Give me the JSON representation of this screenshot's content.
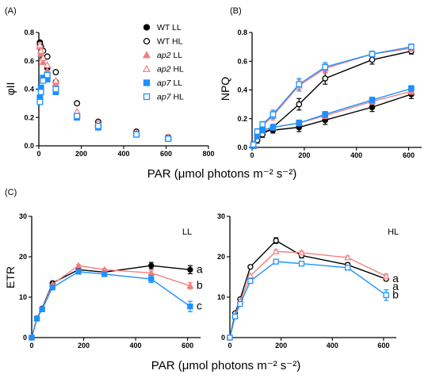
{
  "colors": {
    "wt": "#000000",
    "ap2": "#f08080",
    "ap7": "#1e90ff"
  },
  "panel_a": {
    "label": "(A)",
    "legend": [
      {
        "series": "WT LL",
        "gene": "WT",
        "cond": "LL",
        "italic": false,
        "color": "#000000",
        "marker": "circle",
        "filled": true
      },
      {
        "series": "WT HL",
        "gene": "WT",
        "cond": "HL",
        "italic": false,
        "color": "#000000",
        "marker": "circle",
        "filled": false
      },
      {
        "series": "ap2 LL",
        "gene": "ap2",
        "cond": "LL",
        "italic": true,
        "color": "#f08080",
        "marker": "triangle",
        "filled": true
      },
      {
        "series": "ap2 HL",
        "gene": "ap2",
        "cond": "HL",
        "italic": true,
        "color": "#f08080",
        "marker": "triangle",
        "filled": false
      },
      {
        "series": "ap7 LL",
        "gene": "ap7",
        "cond": "LL",
        "italic": true,
        "color": "#1e90ff",
        "marker": "square",
        "filled": true
      },
      {
        "series": "ap7 HL",
        "gene": "ap7",
        "cond": "HL",
        "italic": true,
        "color": "#1e90ff",
        "marker": "square",
        "filled": false
      }
    ]
  },
  "panel_b": {
    "label": "(B)"
  },
  "panel_c": {
    "label": "(C)",
    "ll_label": "LL",
    "hl_label": "HL"
  },
  "shared": {
    "xlabel_ab": "PAR (μmol photons m⁻² s⁻²)",
    "xlabel_c": "PAR (μmol photons m⁻² s⁻²)"
  },
  "chart_data": [
    {
      "id": "A",
      "type": "scatter",
      "ylabel": "φII",
      "xlabel": "",
      "xlim": [
        0,
        800
      ],
      "ylim": [
        0,
        0.8
      ],
      "xticks": [
        0,
        200,
        400,
        600,
        800
      ],
      "yticks": [
        0.0,
        0.2,
        0.4,
        0.6,
        0.8
      ],
      "x": [
        5,
        10,
        20,
        40,
        80,
        180,
        280,
        460,
        610
      ],
      "series": [
        {
          "name": "WT LL",
          "values": [
            0.73,
            0.69,
            0.62,
            0.55,
            0.45,
            0.22,
            0.15,
            0.09,
            0.06
          ]
        },
        {
          "name": "WT HL",
          "values": [
            0.72,
            0.7,
            0.67,
            0.63,
            0.52,
            0.3,
            0.17,
            0.1,
            0.06
          ]
        },
        {
          "name": "ap2 LL",
          "values": [
            0.7,
            0.65,
            0.59,
            0.53,
            0.44,
            0.22,
            0.15,
            0.09,
            0.06
          ]
        },
        {
          "name": "ap2 HL",
          "values": [
            0.71,
            0.67,
            0.62,
            0.57,
            0.46,
            0.24,
            0.16,
            0.09,
            0.06
          ]
        },
        {
          "name": "ap7 LL",
          "values": [
            0.34,
            0.41,
            0.48,
            0.47,
            0.38,
            0.2,
            0.13,
            0.08,
            0.05
          ]
        },
        {
          "name": "ap7 HL",
          "values": [
            0.31,
            0.38,
            0.46,
            0.5,
            0.4,
            0.21,
            0.14,
            0.08,
            0.05
          ]
        }
      ]
    },
    {
      "id": "B",
      "type": "line",
      "ylabel": "NPQ",
      "xlabel": "",
      "xlim": [
        0,
        650
      ],
      "ylim": [
        0,
        0.8
      ],
      "xticks": [
        0,
        200,
        400,
        600
      ],
      "yticks": [
        0.0,
        0.2,
        0.4,
        0.6,
        0.8
      ],
      "x": [
        5,
        20,
        40,
        80,
        180,
        280,
        460,
        610
      ],
      "series": [
        {
          "name": "WT LL",
          "values": [
            0.01,
            0.07,
            0.11,
            0.12,
            0.14,
            0.19,
            0.28,
            0.37
          ],
          "err": [
            0.01,
            0.02,
            0.02,
            0.02,
            0.03,
            0.03,
            0.03,
            0.03
          ]
        },
        {
          "name": "WT HL",
          "values": [
            0.01,
            0.05,
            0.09,
            0.14,
            0.3,
            0.48,
            0.61,
            0.67
          ],
          "err": [
            0.01,
            0.02,
            0.02,
            0.02,
            0.04,
            0.04,
            0.03,
            0.02
          ]
        },
        {
          "name": "ap2 LL",
          "values": [
            0.01,
            0.08,
            0.12,
            0.14,
            0.17,
            0.22,
            0.32,
            0.39
          ],
          "err": [
            0.01,
            0.02,
            0.02,
            0.02,
            0.02,
            0.02,
            0.02,
            0.02
          ]
        },
        {
          "name": "ap2 HL",
          "values": [
            0.02,
            0.1,
            0.15,
            0.22,
            0.43,
            0.55,
            0.65,
            0.69
          ],
          "err": [
            0.01,
            0.02,
            0.02,
            0.03,
            0.04,
            0.03,
            0.02,
            0.02
          ]
        },
        {
          "name": "ap7 LL",
          "values": [
            0.01,
            0.08,
            0.12,
            0.14,
            0.17,
            0.23,
            0.33,
            0.41
          ],
          "err": [
            0.01,
            0.02,
            0.02,
            0.02,
            0.02,
            0.02,
            0.02,
            0.02
          ]
        },
        {
          "name": "ap7 HL",
          "values": [
            0.02,
            0.11,
            0.16,
            0.23,
            0.44,
            0.56,
            0.65,
            0.7
          ],
          "err": [
            0.01,
            0.02,
            0.02,
            0.03,
            0.04,
            0.03,
            0.02,
            0.02
          ]
        }
      ]
    },
    {
      "id": "C-LL",
      "type": "line",
      "ylabel": "ETR",
      "xlabel": "",
      "xlim": [
        0,
        650
      ],
      "ylim": [
        0,
        30
      ],
      "xticks": [
        0,
        200,
        400,
        600
      ],
      "yticks": [
        0,
        10,
        20,
        30
      ],
      "x": [
        0,
        20,
        40,
        80,
        180,
        280,
        460,
        610
      ],
      "series": [
        {
          "name": "WT LL",
          "values": [
            0,
            4.8,
            7.2,
            13.5,
            16.8,
            16.2,
            17.8,
            16.8
          ],
          "err": [
            0,
            0,
            0,
            0,
            0.3,
            0.4,
            0.8,
            1.0
          ]
        },
        {
          "name": "ap2 LL",
          "values": [
            0,
            4.8,
            7.0,
            13.2,
            17.8,
            16.8,
            16.0,
            12.8
          ],
          "err": [
            0,
            0,
            0,
            0,
            0.3,
            0.3,
            0.5,
            0.8
          ]
        },
        {
          "name": "ap7 LL",
          "values": [
            0,
            4.7,
            7.0,
            12.4,
            16.3,
            15.7,
            14.5,
            7.7
          ],
          "err": [
            0,
            0,
            0,
            0,
            0.4,
            0.6,
            0.9,
            1.3
          ]
        }
      ],
      "annotations": [
        "a",
        "b",
        "c"
      ]
    },
    {
      "id": "C-HL",
      "type": "line",
      "ylabel": "",
      "xlabel": "",
      "xlim": [
        0,
        650
      ],
      "ylim": [
        0,
        30
      ],
      "xticks": [
        0,
        200,
        400,
        600
      ],
      "yticks": [
        0,
        10,
        20,
        30
      ],
      "x": [
        0,
        20,
        40,
        80,
        180,
        280,
        460,
        610
      ],
      "series": [
        {
          "name": "WT HL",
          "values": [
            0,
            6.0,
            9.5,
            17.5,
            24.0,
            20.3,
            18.0,
            14.5
          ],
          "err": [
            0,
            0,
            0,
            0,
            0.7,
            0.6,
            0.5,
            0.4
          ]
        },
        {
          "name": "ap2 HL",
          "values": [
            0,
            5.5,
            9.0,
            15.3,
            21.3,
            21.0,
            19.8,
            15.2
          ],
          "err": [
            0,
            0,
            0,
            0,
            0.4,
            0.4,
            0.4,
            0.5
          ]
        },
        {
          "name": "ap7 HL",
          "values": [
            0,
            5.2,
            8.3,
            14.0,
            18.8,
            18.3,
            17.3,
            10.5
          ],
          "err": [
            0,
            0,
            0,
            0,
            0.4,
            0.5,
            0.5,
            1.3
          ]
        }
      ],
      "annotations": [
        "a",
        "a",
        "b"
      ]
    }
  ]
}
